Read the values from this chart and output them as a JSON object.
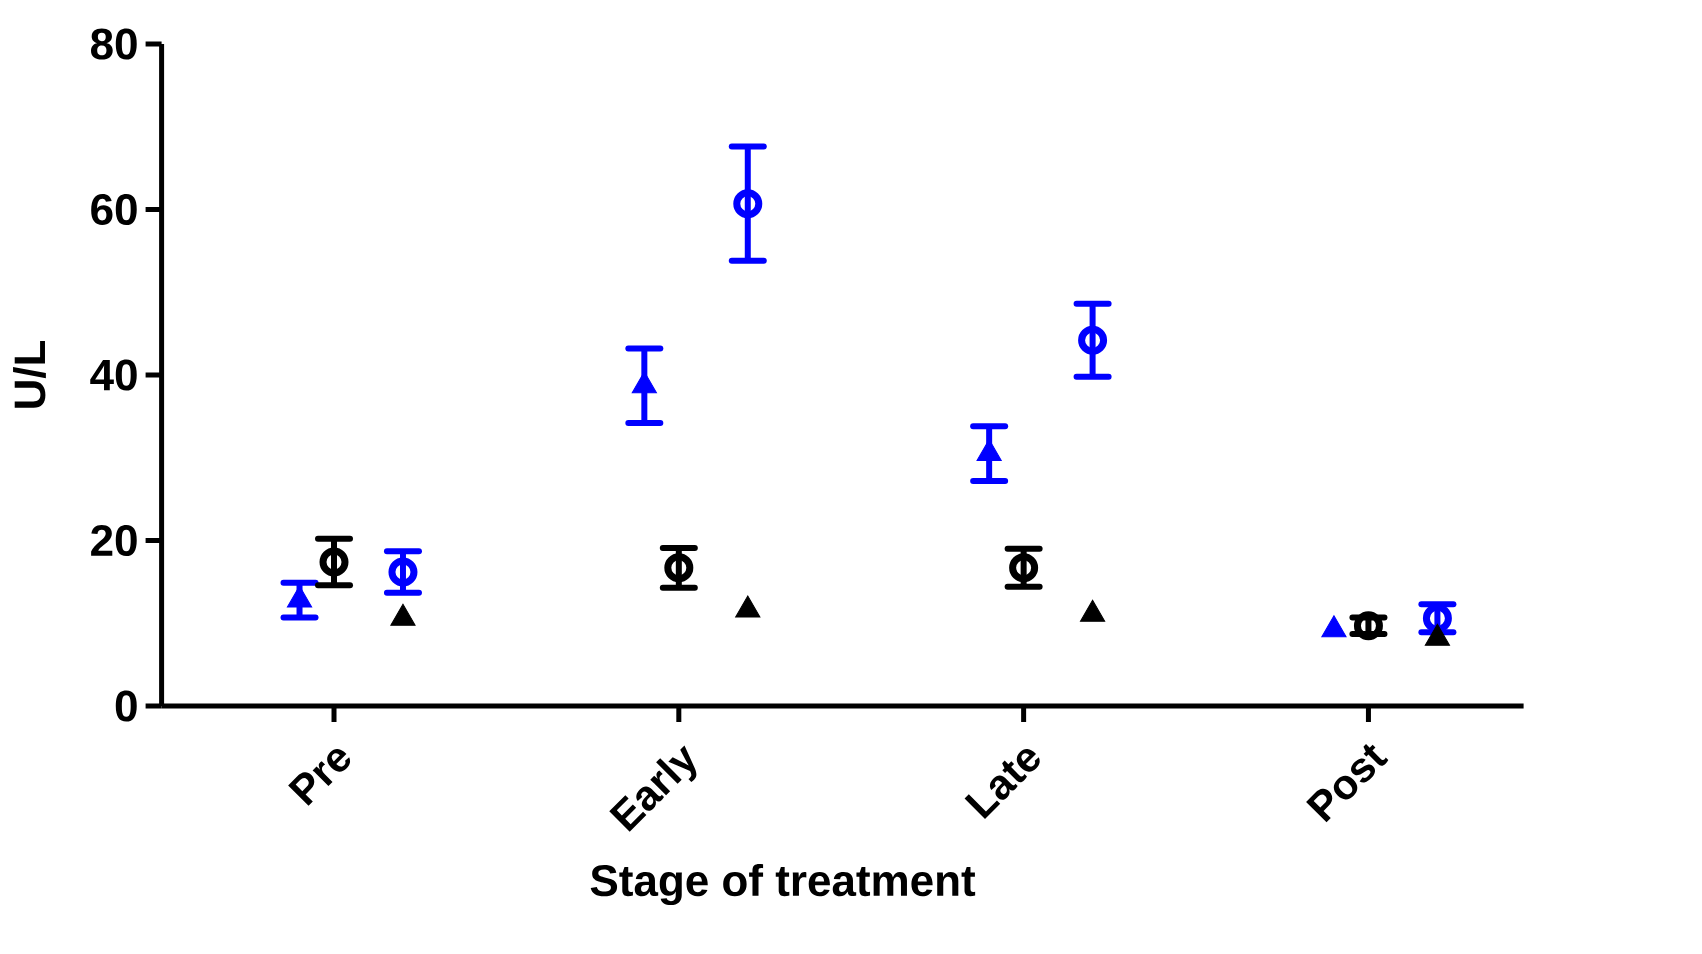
{
  "chart_data": {
    "type": "scatter",
    "xlabel": "Stage of treatment",
    "ylabel": "U/L",
    "categories": [
      "Pre",
      "Early",
      "Late",
      "Post"
    ],
    "ylim": [
      0,
      80
    ],
    "yticks": [
      0,
      20,
      40,
      60,
      80
    ],
    "series": [
      {
        "color": "#0000ff",
        "marker": "triangle",
        "values": [
          12.8,
          38.7,
          30.5,
          9.2
        ],
        "errors": [
          2.1,
          4.5,
          3.3,
          null
        ]
      },
      {
        "color": "#000000",
        "marker": "circle",
        "values": [
          17.4,
          16.7,
          16.7,
          9.7
        ],
        "errors": [
          2.8,
          2.4,
          2.3,
          1.0
        ]
      },
      {
        "color": "#0000ff",
        "marker": "circle",
        "values": [
          16.2,
          60.7,
          44.2,
          10.6
        ],
        "errors": [
          2.5,
          6.9,
          4.4,
          1.7
        ]
      },
      {
        "color": "#000000",
        "marker": "triangle",
        "values": [
          10.6,
          11.6,
          11.1,
          8.2
        ],
        "errors": [
          null,
          null,
          null,
          null
        ]
      }
    ]
  }
}
